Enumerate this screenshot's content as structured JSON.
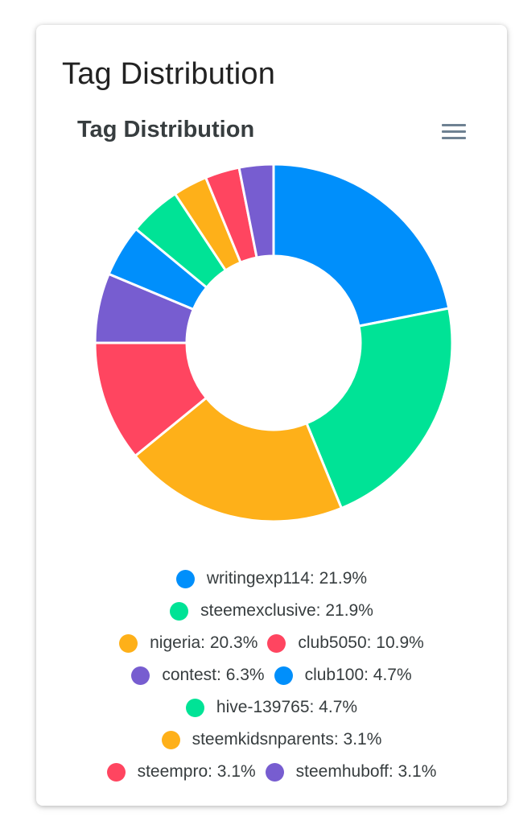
{
  "card": {
    "title": "Tag Distribution"
  },
  "chart_data": {
    "type": "pie",
    "title": "Tag Distribution",
    "donut": true,
    "legend_position": "bottom",
    "series": [
      {
        "name": "writingexp114",
        "value": 21.9,
        "label": "writingexp114: 21.9%",
        "color": "#008ffb"
      },
      {
        "name": "steemexclusive",
        "value": 21.9,
        "label": "steemexclusive: 21.9%",
        "color": "#00e396"
      },
      {
        "name": "nigeria",
        "value": 20.3,
        "label": "nigeria: 20.3%",
        "color": "#feb019"
      },
      {
        "name": "club5050",
        "value": 10.9,
        "label": "club5050: 10.9%",
        "color": "#ff4560"
      },
      {
        "name": "contest",
        "value": 6.3,
        "label": "contest: 6.3%",
        "color": "#775dd0"
      },
      {
        "name": "club100",
        "value": 4.7,
        "label": "club100: 4.7%",
        "color": "#008ffb"
      },
      {
        "name": "hive-139765",
        "value": 4.7,
        "label": "hive-139765: 4.7%",
        "color": "#00e396"
      },
      {
        "name": "steemkidsnparents",
        "value": 3.1,
        "label": "steemkidsnparents: 3.1%",
        "color": "#feb019"
      },
      {
        "name": "steempro",
        "value": 3.1,
        "label": "steempro: 3.1%",
        "color": "#ff4560"
      },
      {
        "name": "steemhuboff",
        "value": 3.1,
        "label": "steemhuboff: 3.1%",
        "color": "#775dd0"
      }
    ],
    "legend_rows": [
      [
        0
      ],
      [
        1
      ],
      [
        2,
        3
      ],
      [
        4,
        5
      ],
      [
        6
      ],
      [
        7
      ],
      [
        8,
        9
      ]
    ]
  },
  "icons": {
    "menu": "hamburger-menu-icon"
  }
}
